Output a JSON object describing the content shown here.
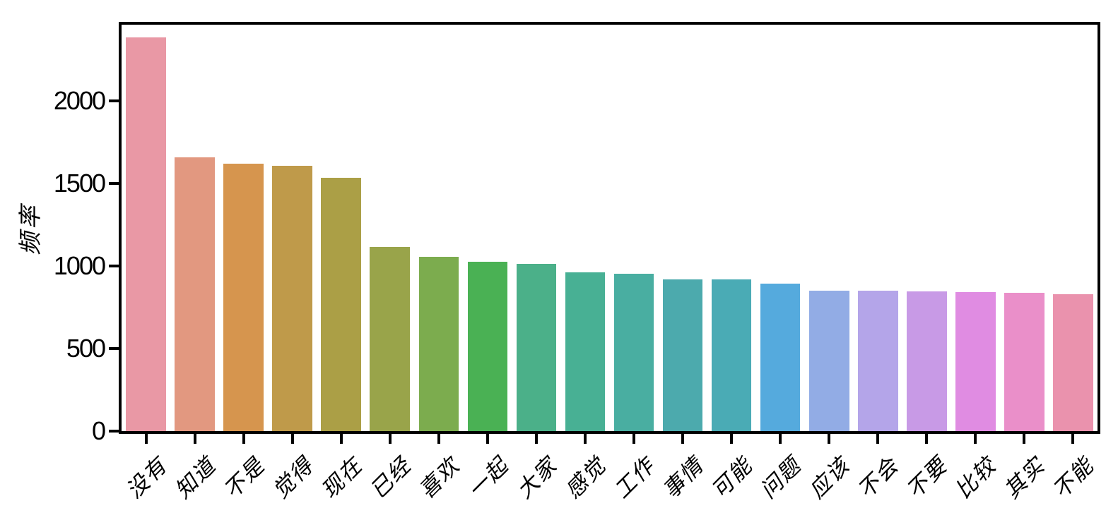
{
  "figure": {
    "background": "#ffffff"
  },
  "chart_data": {
    "type": "bar",
    "title": "",
    "xlabel": "",
    "ylabel": "频率",
    "categories": [
      "没有",
      "知道",
      "不是",
      "觉得",
      "现在",
      "已经",
      "喜欢",
      "一起",
      "大家",
      "感觉",
      "工作",
      "事情",
      "可能",
      "问题",
      "应该",
      "不会",
      "不要",
      "比较",
      "其实",
      "不能"
    ],
    "values": [
      2383,
      1658,
      1620,
      1606,
      1535,
      1114,
      1055,
      1025,
      1013,
      962,
      953,
      920,
      918,
      894,
      851,
      848,
      846,
      843,
      838,
      830
    ],
    "bar_colors": [
      "#e998a5",
      "#e29880",
      "#d6954e",
      "#bf9a4a",
      "#ab9f46",
      "#99a44a",
      "#7cac4e",
      "#4ab154",
      "#4bb089",
      "#48b094",
      "#49aea1",
      "#4caaad",
      "#4aabb5",
      "#55aadd",
      "#92ace5",
      "#b4a5e9",
      "#c89ae6",
      "#e08ce2",
      "#ea8fc9",
      "#ea92ad"
    ],
    "yticks": [
      0,
      500,
      1000,
      1500,
      2000
    ],
    "ytick_labels": [
      "0",
      "500",
      "1000",
      "1500",
      "2000"
    ],
    "ylim": [
      0,
      2460
    ],
    "grid": false,
    "legend": null,
    "x_tick_rotation": 45,
    "bar_width_fraction": 0.82,
    "axis_color": "#000000"
  }
}
